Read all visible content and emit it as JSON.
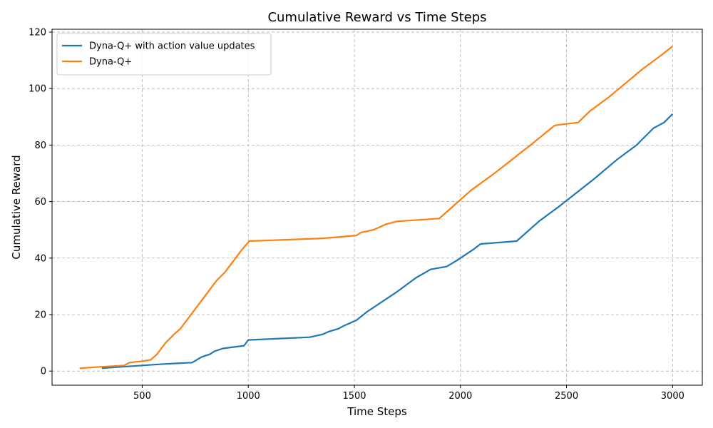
{
  "chart_data": {
    "type": "line",
    "title": "Cumulative Reward vs Time Steps",
    "xlabel": "Time Steps",
    "ylabel": "Cumulative Reward",
    "xlim": [
      75,
      3140
    ],
    "ylim": [
      -5,
      121
    ],
    "xticks": [
      500,
      1000,
      1500,
      2000,
      2500,
      3000
    ],
    "yticks": [
      0,
      20,
      40,
      60,
      80,
      100,
      120
    ],
    "grid": true,
    "legend_position": "top-left",
    "series": [
      {
        "name": "Dyna-Q+ with action value updates",
        "color": "#1f77b4",
        "x": [
          310,
          400,
          500,
          600,
          735,
          780,
          820,
          840,
          880,
          980,
          1000,
          1290,
          1350,
          1380,
          1425,
          1450,
          1480,
          1510,
          1560,
          1660,
          1700,
          1790,
          1860,
          1935,
          1980,
          2060,
          2095,
          2265,
          2370,
          2460,
          2630,
          2740,
          2830,
          2910,
          2960,
          3000
        ],
        "y": [
          1,
          1.5,
          2,
          2.5,
          3,
          5,
          6,
          7,
          8,
          9,
          11,
          12,
          13,
          14,
          15,
          16,
          17,
          18,
          21,
          26,
          28,
          33,
          36,
          37,
          39,
          43,
          45,
          46,
          53,
          58,
          68,
          75,
          80,
          86,
          88,
          91
        ]
      },
      {
        "name": "Dyna-Q+",
        "color": "#ff7f0e",
        "x": [
          205,
          300,
          415,
          440,
          500,
          540,
          570,
          610,
          650,
          680,
          720,
          800,
          850,
          890,
          940,
          970,
          1005,
          1350,
          1510,
          1530,
          1590,
          1650,
          1700,
          1900,
          1960,
          2050,
          2160,
          2330,
          2445,
          2555,
          2610,
          2700,
          2780,
          2860,
          2950,
          3000
        ],
        "y": [
          1,
          1.5,
          2,
          3,
          3.5,
          4,
          6,
          10,
          13,
          15,
          19,
          27,
          32,
          35,
          40,
          43,
          46,
          47,
          48,
          49,
          50,
          52,
          53,
          54,
          58,
          64,
          70,
          80,
          87,
          88,
          92,
          97,
          102,
          107,
          112,
          115
        ]
      }
    ]
  }
}
